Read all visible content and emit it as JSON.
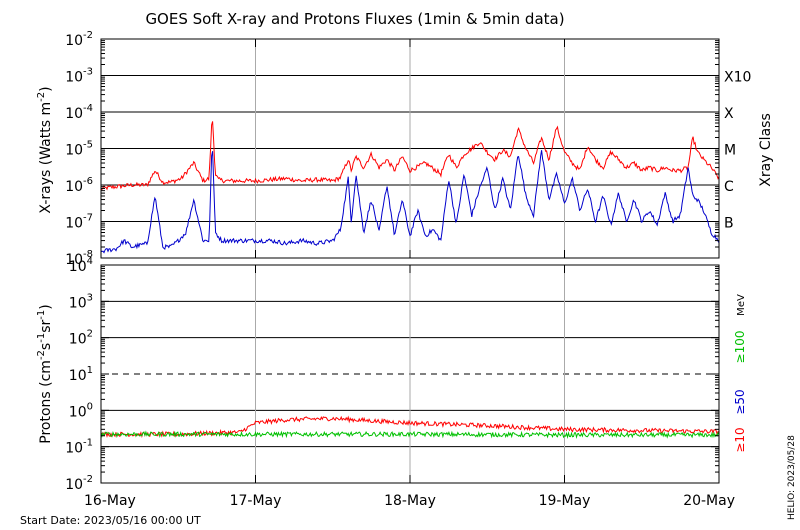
{
  "chart_data": [
    {
      "type": "line",
      "panel": "xray",
      "title": "GOES Soft X-ray and Protons Fluxes   (1min & 5min data)",
      "ylabel_main": "X-rays (Watts m",
      "ylabel_exp": "-2",
      "ylabel_close": ")",
      "yscale": "log",
      "ylim": [
        1e-08,
        0.01
      ],
      "y_ticks": [
        {
          "base": "10",
          "exp": "-8",
          "value": 1e-08
        },
        {
          "base": "10",
          "exp": "-7",
          "value": 1e-07
        },
        {
          "base": "10",
          "exp": "-6",
          "value": 1e-06
        },
        {
          "base": "10",
          "exp": "-5",
          "value": 1e-05
        },
        {
          "base": "10",
          "exp": "-4",
          "value": 0.0001
        },
        {
          "base": "10",
          "exp": "-3",
          "value": 0.001
        },
        {
          "base": "10",
          "exp": "-2",
          "value": 0.01
        }
      ],
      "right_axis_label": "Xray Class",
      "class_labels": [
        {
          "label": "B",
          "value": 1e-07
        },
        {
          "label": "C",
          "value": 1e-06
        },
        {
          "label": "M",
          "value": 1e-05
        },
        {
          "label": "X",
          "value": 0.0001
        },
        {
          "label": "X10",
          "value": 0.001
        }
      ],
      "grid_levels": [
        1e-08,
        1e-07,
        1e-06,
        1e-05,
        0.0001,
        0.001
      ],
      "series": [
        {
          "color": "#ff0000",
          "x": [
            0.0,
            0.1,
            0.2,
            0.3,
            0.35,
            0.4,
            0.45,
            0.52,
            0.6,
            0.66,
            0.7,
            0.72,
            0.73,
            0.74,
            0.76,
            0.8,
            0.9,
            1.0,
            1.1,
            1.2,
            1.3,
            1.4,
            1.5,
            1.55,
            1.6,
            1.62,
            1.65,
            1.7,
            1.75,
            1.8,
            1.85,
            1.9,
            1.95,
            2.0,
            2.1,
            2.2,
            2.25,
            2.3,
            2.35,
            2.4,
            2.45,
            2.5,
            2.55,
            2.6,
            2.65,
            2.7,
            2.75,
            2.8,
            2.85,
            2.9,
            2.95,
            3.0,
            3.05,
            3.1,
            3.15,
            3.2,
            3.25,
            3.3,
            3.35,
            3.4,
            3.45,
            3.5,
            3.55,
            3.6,
            3.65,
            3.7,
            3.75,
            3.8,
            3.83,
            3.86,
            3.9,
            3.95,
            4.0
          ],
          "values": [
            8e-07,
            9e-07,
            1e-06,
            1e-06,
            2.5e-06,
            1.2e-06,
            1.2e-06,
            1.5e-06,
            4e-06,
            1.3e-06,
            1.5e-06,
            9e-05,
            1.5e-05,
            2e-06,
            1.4e-06,
            1.3e-06,
            1.3e-06,
            1.3e-06,
            1.4e-06,
            1.5e-06,
            1.3e-06,
            1.4e-06,
            1.3e-06,
            1.6e-06,
            5e-06,
            2.5e-06,
            6e-06,
            3e-06,
            7e-06,
            3e-06,
            5e-06,
            2.5e-06,
            6e-06,
            2.5e-06,
            4e-06,
            2e-06,
            7e-06,
            3e-06,
            7e-06,
            1e-05,
            1.5e-05,
            8e-06,
            5e-06,
            9e-06,
            6e-06,
            3.5e-05,
            1e-05,
            4e-06,
            2e-05,
            5e-06,
            4e-05,
            8e-06,
            4e-06,
            2.5e-06,
            1.2e-05,
            5e-06,
            3e-06,
            8e-06,
            5e-06,
            3e-06,
            4e-06,
            2.5e-06,
            3e-06,
            2.5e-06,
            3e-06,
            2.5e-06,
            2.5e-06,
            3e-06,
            2e-05,
            8e-06,
            5e-06,
            3e-06,
            1.5e-06
          ]
        },
        {
          "color": "#0000cc",
          "x": [
            0.0,
            0.1,
            0.15,
            0.2,
            0.3,
            0.35,
            0.4,
            0.45,
            0.5,
            0.55,
            0.6,
            0.66,
            0.7,
            0.72,
            0.73,
            0.74,
            0.78,
            0.85,
            0.9,
            1.0,
            1.1,
            1.2,
            1.3,
            1.4,
            1.5,
            1.55,
            1.6,
            1.62,
            1.65,
            1.7,
            1.75,
            1.8,
            1.85,
            1.9,
            1.95,
            2.0,
            2.05,
            2.1,
            2.15,
            2.2,
            2.25,
            2.3,
            2.35,
            2.4,
            2.45,
            2.5,
            2.55,
            2.6,
            2.65,
            2.7,
            2.75,
            2.8,
            2.85,
            2.9,
            2.95,
            3.0,
            3.05,
            3.1,
            3.15,
            3.2,
            3.25,
            3.3,
            3.35,
            3.4,
            3.45,
            3.5,
            3.55,
            3.6,
            3.65,
            3.7,
            3.75,
            3.8,
            3.83,
            3.86,
            3.9,
            3.95,
            4.0
          ],
          "values": [
            1.5e-08,
            1.8e-08,
            3e-08,
            2e-08,
            2.5e-08,
            5e-07,
            2e-08,
            2e-08,
            3e-08,
            5e-08,
            4e-07,
            3e-08,
            3e-08,
            2e-05,
            1e-06,
            5e-08,
            3e-08,
            3e-08,
            3e-08,
            3e-08,
            3e-08,
            2.5e-08,
            3e-08,
            2.5e-08,
            3e-08,
            6e-08,
            1.5e-06,
            1e-07,
            2e-06,
            5e-08,
            4e-07,
            5e-08,
            1e-06,
            4e-08,
            4e-07,
            4e-08,
            2e-07,
            4e-08,
            6e-08,
            3e-08,
            1.5e-06,
            8e-08,
            2e-06,
            1.5e-07,
            8e-07,
            3e-06,
            2e-07,
            1.5e-06,
            2e-07,
            8e-06,
            5e-07,
            1.5e-07,
            9e-06,
            4e-07,
            2e-06,
            3e-07,
            1.5e-06,
            2e-07,
            8e-07,
            1e-07,
            5e-07,
            8e-08,
            6e-07,
            1e-07,
            4e-07,
            1e-07,
            2e-07,
            8e-08,
            6e-07,
            1e-07,
            1.5e-07,
            3e-06,
            5e-07,
            4e-07,
            2e-07,
            5e-08,
            3e-08
          ]
        }
      ]
    },
    {
      "type": "line",
      "panel": "protons",
      "ylabel_text": "Protons (cm",
      "ylabel_exp1": "-2",
      "ylabel_s": "s",
      "ylabel_exp2": "-1",
      "ylabel_sr": "sr",
      "ylabel_exp3": "-1",
      "ylabel_close": ")",
      "yscale": "log",
      "ylim": [
        0.01,
        10000.0
      ],
      "y_ticks": [
        {
          "base": "10",
          "exp": "-2",
          "value": 0.01
        },
        {
          "base": "10",
          "exp": "-1",
          "value": 0.1
        },
        {
          "base": "10",
          "exp": "0",
          "value": 1.0
        },
        {
          "base": "10",
          "exp": "1",
          "value": 10.0
        },
        {
          "base": "10",
          "exp": "2",
          "value": 100.0
        },
        {
          "base": "10",
          "exp": "3",
          "value": 1000.0
        },
        {
          "base": "10",
          "exp": "4",
          "value": 10000.0
        }
      ],
      "grid_levels": [
        0.1,
        1.0,
        100.0,
        1000.0
      ],
      "dashed_level": 10.0,
      "energy_unit": "MeV",
      "energy_labels": [
        {
          "label": "≥10",
          "color": "#ff0000"
        },
        {
          "label": "≥50",
          "color": "#0000cc"
        },
        {
          "label": "≥100",
          "color": "#00c000"
        }
      ],
      "series": [
        {
          "color": "#ff0000",
          "x": [
            0.0,
            0.5,
            0.9,
            1.0,
            1.2,
            1.5,
            1.8,
            2.0,
            2.5,
            3.0,
            3.5,
            4.0
          ],
          "values": [
            0.22,
            0.22,
            0.25,
            0.45,
            0.55,
            0.6,
            0.5,
            0.45,
            0.38,
            0.3,
            0.28,
            0.26
          ]
        },
        {
          "color": "#00c000",
          "x": [
            0.0,
            1.0,
            2.0,
            3.0,
            4.0
          ],
          "values": [
            0.22,
            0.22,
            0.22,
            0.21,
            0.21
          ]
        }
      ]
    }
  ],
  "x_axis": {
    "tick_labels": [
      "16-May",
      "17-May",
      "18-May",
      "19-May",
      "20-May"
    ],
    "tick_positions": [
      0,
      1,
      2,
      3,
      4
    ]
  },
  "footer": {
    "start_date": "Start Date: 2023/05/16 00:00 UT",
    "helio_stamp": "HELIO: 2023/05/28"
  }
}
